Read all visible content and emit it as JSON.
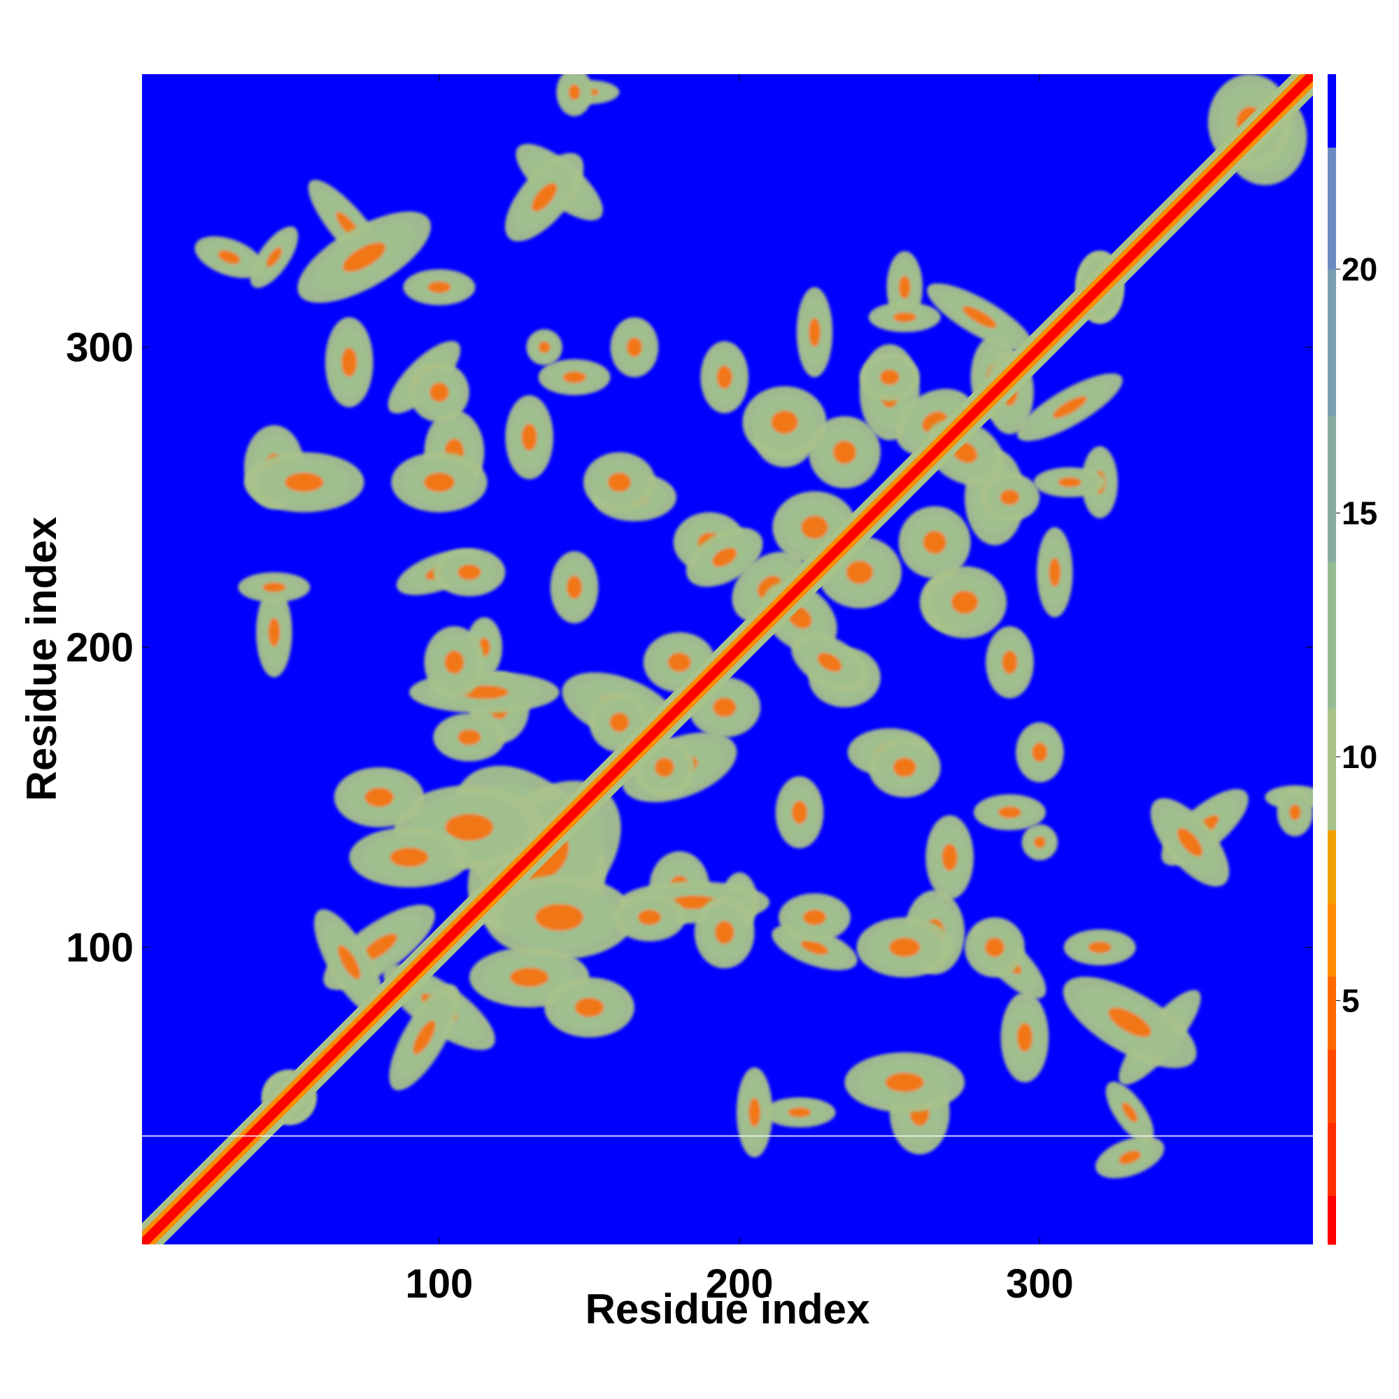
{
  "chart_data": {
    "type": "heatmap",
    "title": "",
    "xlabel": "Residue index",
    "ylabel": "Residue index",
    "xlim": [
      1,
      391
    ],
    "ylim": [
      1,
      391
    ],
    "x_ticks": [
      100,
      200,
      300
    ],
    "y_ticks": [
      100,
      200,
      300
    ],
    "grid": false,
    "colorbar": {
      "position": "right",
      "range": [
        0,
        24
      ],
      "ticks": [
        5,
        10,
        15,
        20
      ],
      "levels": [
        {
          "from": 0,
          "to": 1,
          "color": "#ff0000"
        },
        {
          "from": 1,
          "to": 2.5,
          "color": "#ff3000"
        },
        {
          "from": 2.5,
          "to": 4,
          "color": "#ff4a00"
        },
        {
          "from": 4,
          "to": 5.5,
          "color": "#ff6a00"
        },
        {
          "from": 5.5,
          "to": 7,
          "color": "#ff8c00"
        },
        {
          "from": 7,
          "to": 8.5,
          "color": "#f0a000"
        },
        {
          "from": 8.5,
          "to": 11,
          "color": "#a9c28a"
        },
        {
          "from": 11,
          "to": 14,
          "color": "#96bc94"
        },
        {
          "from": 14,
          "to": 17,
          "color": "#88aba0"
        },
        {
          "from": 17,
          "to": 20,
          "color": "#7b9db0"
        },
        {
          "from": 20,
          "to": 22.5,
          "color": "#6c8cc0"
        },
        {
          "from": 22.5,
          "to": 24,
          "color": "#0000ff"
        }
      ]
    },
    "background_color": "#0000ff",
    "diagonal_color": "#ff0000",
    "contact_regions": [
      {
        "x": 50,
        "y": 50,
        "rx": 9,
        "ry": 9,
        "rot": 0
      },
      {
        "x": 45,
        "y": 330,
        "rx": 12,
        "ry": 5,
        "rot": -55
      },
      {
        "x": 70,
        "y": 340,
        "rx": 20,
        "ry": 6,
        "rot": 50
      },
      {
        "x": 95,
        "y": 290,
        "rx": 16,
        "ry": 6,
        "rot": -45
      },
      {
        "x": 45,
        "y": 260,
        "rx": 10,
        "ry": 14,
        "rot": 0
      },
      {
        "x": 105,
        "y": 265,
        "rx": 10,
        "ry": 14,
        "rot": 0
      },
      {
        "x": 140,
        "y": 355,
        "rx": 18,
        "ry": 7,
        "rot": 40
      },
      {
        "x": 150,
        "y": 385,
        "rx": 10,
        "ry": 4,
        "rot": 0
      },
      {
        "x": 100,
        "y": 225,
        "rx": 15,
        "ry": 6,
        "rot": -20
      },
      {
        "x": 45,
        "y": 205,
        "rx": 6,
        "ry": 15,
        "rot": 0
      },
      {
        "x": 130,
        "y": 270,
        "rx": 8,
        "ry": 14,
        "rot": 0
      },
      {
        "x": 145,
        "y": 290,
        "rx": 12,
        "ry": 6,
        "rot": 0
      },
      {
        "x": 195,
        "y": 290,
        "rx": 8,
        "ry": 12,
        "rot": 0
      },
      {
        "x": 165,
        "y": 250,
        "rx": 14,
        "ry": 8,
        "rot": 0
      },
      {
        "x": 190,
        "y": 235,
        "rx": 12,
        "ry": 10,
        "rot": 0
      },
      {
        "x": 215,
        "y": 270,
        "rx": 10,
        "ry": 10,
        "rot": 0
      },
      {
        "x": 235,
        "y": 265,
        "rx": 12,
        "ry": 12,
        "rot": 0
      },
      {
        "x": 210,
        "y": 220,
        "rx": 14,
        "ry": 10,
        "rot": -40
      },
      {
        "x": 240,
        "y": 225,
        "rx": 14,
        "ry": 12,
        "rot": 0
      },
      {
        "x": 230,
        "y": 195,
        "rx": 14,
        "ry": 8,
        "rot": 30
      },
      {
        "x": 275,
        "y": 215,
        "rx": 14,
        "ry": 12,
        "rot": 0
      },
      {
        "x": 285,
        "y": 250,
        "rx": 10,
        "ry": 16,
        "rot": 0
      },
      {
        "x": 265,
        "y": 275,
        "rx": 14,
        "ry": 10,
        "rot": -30
      },
      {
        "x": 250,
        "y": 290,
        "rx": 10,
        "ry": 8,
        "rot": 0
      },
      {
        "x": 285,
        "y": 290,
        "rx": 8,
        "ry": 14,
        "rot": 0
      },
      {
        "x": 310,
        "y": 280,
        "rx": 20,
        "ry": 6,
        "rot": -30
      },
      {
        "x": 320,
        "y": 320,
        "rx": 8,
        "ry": 12,
        "rot": 0
      },
      {
        "x": 255,
        "y": 320,
        "rx": 6,
        "ry": 12,
        "rot": 0
      },
      {
        "x": 225,
        "y": 305,
        "rx": 6,
        "ry": 15,
        "rot": 0
      },
      {
        "x": 310,
        "y": 255,
        "rx": 12,
        "ry": 5,
        "rot": 0
      },
      {
        "x": 375,
        "y": 370,
        "rx": 14,
        "ry": 16,
        "rot": 0
      },
      {
        "x": 180,
        "y": 160,
        "rx": 20,
        "ry": 10,
        "rot": -20
      },
      {
        "x": 195,
        "y": 180,
        "rx": 12,
        "ry": 10,
        "rot": 0
      },
      {
        "x": 160,
        "y": 175,
        "rx": 10,
        "ry": 10,
        "rot": 0
      },
      {
        "x": 130,
        "y": 135,
        "rx": 30,
        "ry": 20,
        "rot": 45
      },
      {
        "x": 110,
        "y": 140,
        "rx": 25,
        "ry": 14,
        "rot": 0
      },
      {
        "x": 80,
        "y": 100,
        "rx": 22,
        "ry": 8,
        "rot": -35
      },
      {
        "x": 95,
        "y": 70,
        "rx": 20,
        "ry": 7,
        "rot": -60
      },
      {
        "x": 130,
        "y": 90,
        "rx": 20,
        "ry": 10,
        "rot": 0
      },
      {
        "x": 150,
        "y": 80,
        "rx": 15,
        "ry": 10,
        "rot": 0
      },
      {
        "x": 120,
        "y": 180,
        "rx": 10,
        "ry": 12,
        "rot": 0
      },
      {
        "x": 115,
        "y": 200,
        "rx": 6,
        "ry": 10,
        "rot": 0
      },
      {
        "x": 185,
        "y": 115,
        "rx": 25,
        "ry": 7,
        "rot": 0
      },
      {
        "x": 195,
        "y": 105,
        "rx": 10,
        "ry": 12,
        "rot": 0
      },
      {
        "x": 170,
        "y": 110,
        "rx": 12,
        "ry": 8,
        "rot": 0
      },
      {
        "x": 225,
        "y": 110,
        "rx": 12,
        "ry": 8,
        "rot": 0
      },
      {
        "x": 255,
        "y": 100,
        "rx": 16,
        "ry": 10,
        "rot": 0
      },
      {
        "x": 285,
        "y": 100,
        "rx": 10,
        "ry": 10,
        "rot": 0
      },
      {
        "x": 295,
        "y": 70,
        "rx": 8,
        "ry": 15,
        "rot": 0
      },
      {
        "x": 255,
        "y": 55,
        "rx": 20,
        "ry": 10,
        "rot": 0
      },
      {
        "x": 220,
        "y": 45,
        "rx": 12,
        "ry": 5,
        "rot": 0
      },
      {
        "x": 330,
        "y": 75,
        "rx": 25,
        "ry": 10,
        "rot": 30
      },
      {
        "x": 320,
        "y": 100,
        "rx": 12,
        "ry": 6,
        "rot": 0
      },
      {
        "x": 330,
        "y": 30,
        "rx": 12,
        "ry": 6,
        "rot": -20
      },
      {
        "x": 350,
        "y": 135,
        "rx": 18,
        "ry": 8,
        "rot": 50
      },
      {
        "x": 385,
        "y": 145,
        "rx": 6,
        "ry": 8,
        "rot": 0
      },
      {
        "x": 300,
        "y": 165,
        "rx": 8,
        "ry": 10,
        "rot": 0
      },
      {
        "x": 255,
        "y": 160,
        "rx": 12,
        "ry": 10,
        "rot": 0
      },
      {
        "x": 220,
        "y": 145,
        "rx": 8,
        "ry": 12,
        "rot": 0
      },
      {
        "x": 300,
        "y": 135,
        "rx": 6,
        "ry": 6,
        "rot": 0
      }
    ]
  },
  "axes": {
    "x_ticks": [
      {
        "id": "x-tick-label-100",
        "value": 100,
        "label": "100"
      },
      {
        "id": "x-tick-label-200",
        "value": 200,
        "label": "200"
      },
      {
        "id": "x-tick-label-300",
        "value": 300,
        "label": "300"
      }
    ],
    "y_ticks": [
      {
        "id": "y-tick-label-100",
        "value": 100,
        "label": "100"
      },
      {
        "id": "y-tick-label-200",
        "value": 200,
        "label": "200"
      },
      {
        "id": "y-tick-label-300",
        "value": 300,
        "label": "300"
      }
    ],
    "colorbar_ticks": [
      {
        "value": 5,
        "label": "5"
      },
      {
        "value": 10,
        "label": "10"
      },
      {
        "value": 15,
        "label": "15"
      },
      {
        "value": 20,
        "label": "20"
      }
    ],
    "xlabel": "Residue index",
    "ylabel": "Residue index"
  }
}
